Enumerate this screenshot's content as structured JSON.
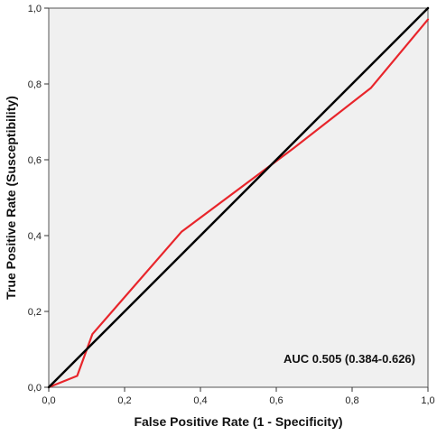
{
  "chart_data": {
    "type": "line",
    "xlabel": "False Positive Rate (1 - Specificity)",
    "ylabel": "True Positive Rate (Susceptibility)",
    "xlim": [
      0,
      1
    ],
    "ylim": [
      0,
      1
    ],
    "x_ticks": [
      0,
      0.2,
      0.4,
      0.6,
      0.8,
      1.0
    ],
    "y_ticks": [
      0,
      0.2,
      0.4,
      0.6,
      0.8,
      1.0
    ],
    "x_tick_labels": [
      "0,0",
      "0,2",
      "0,4",
      "0,6",
      "0,8",
      "1,0"
    ],
    "y_tick_labels": [
      "0,0",
      "0,2",
      "0,4",
      "0,6",
      "0,8",
      "1,0"
    ],
    "grid": false,
    "series": [
      {
        "color": "#e8252b",
        "x": [
          0,
          0.075,
          0.115,
          0.35,
          0.645,
          0.85,
          1.0
        ],
        "y": [
          0,
          0.03,
          0.14,
          0.41,
          0.63,
          0.79,
          0.97
        ]
      },
      {
        "color": "#000000",
        "x": [
          0,
          1
        ],
        "y": [
          0,
          1
        ]
      }
    ],
    "annotation": "AUC 0.505 (0.384-0.626)",
    "plot_background": "#f0f0f0"
  }
}
